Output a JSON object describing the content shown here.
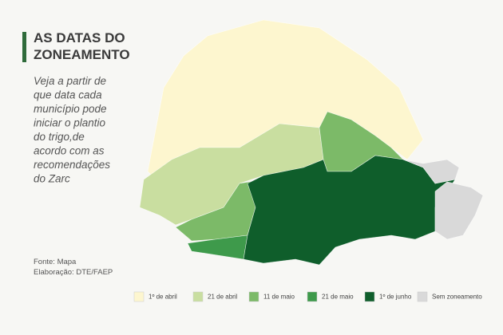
{
  "header": {
    "title_lines": [
      "AS DATAS DO",
      "ZONEAMENTO"
    ],
    "description_lines": [
      "Veja a partir de",
      "que data cada",
      "município pode",
      "iniciar o plantio",
      "do trigo,de",
      "acordo com as",
      "recomendações",
      "do Zarc"
    ]
  },
  "source_lines": [
    "Fonte: Mapa",
    "Elaboração: DTE/FAEP"
  ],
  "legend": [
    {
      "label": "1º de abril",
      "color": "#fdf6cf"
    },
    {
      "label": "21 de abril",
      "color": "#c9dea0"
    },
    {
      "label": "11 de maio",
      "color": "#7cba68"
    },
    {
      "label": "21 de maio",
      "color": "#3e9a4b"
    },
    {
      "label": "1º de junho",
      "color": "#0f5e2b"
    },
    {
      "label": "Sem zoneamento",
      "color": "#d9d9d9"
    }
  ]
}
